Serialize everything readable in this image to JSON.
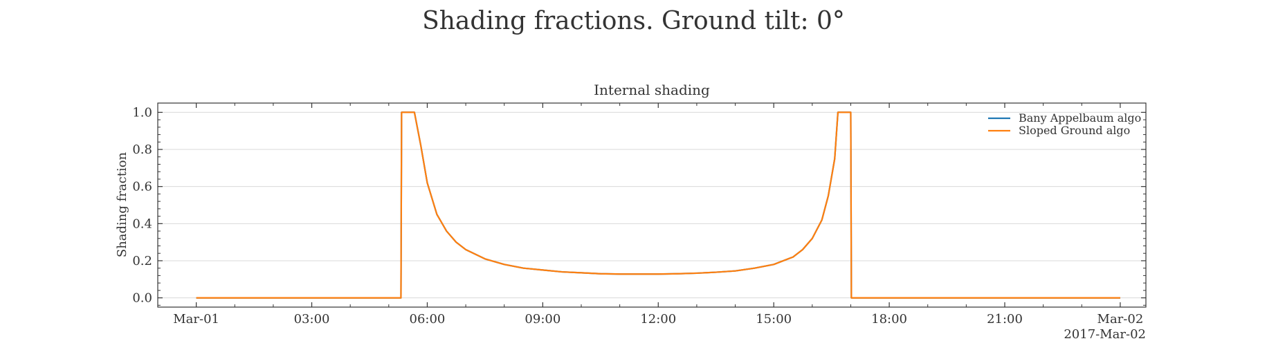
{
  "figure": {
    "suptitle": "Shading fractions. Ground tilt: 0°"
  },
  "chart_data": {
    "type": "line",
    "title": "Internal shading",
    "xlabel": "",
    "ylabel": "Shading fraction",
    "x_offset_label": "2017-Mar-02",
    "xlim": [
      "2017-03-01 -01:00",
      "2017-03-02 +00:40"
    ],
    "ylim": [
      -0.05,
      1.05
    ],
    "x_ticks": [
      {
        "t": "2017-03-01 00:00",
        "label": "Mar-01"
      },
      {
        "t": "2017-03-01 03:00",
        "label": "03:00"
      },
      {
        "t": "2017-03-01 06:00",
        "label": "06:00"
      },
      {
        "t": "2017-03-01 09:00",
        "label": "09:00"
      },
      {
        "t": "2017-03-01 12:00",
        "label": "12:00"
      },
      {
        "t": "2017-03-01 15:00",
        "label": "15:00"
      },
      {
        "t": "2017-03-01 18:00",
        "label": "18:00"
      },
      {
        "t": "2017-03-01 21:00",
        "label": "21:00"
      },
      {
        "t": "2017-03-02 00:00",
        "label": "Mar-02"
      }
    ],
    "y_ticks": [
      {
        "v": 0.0,
        "label": "0.0"
      },
      {
        "v": 0.2,
        "label": "0.2"
      },
      {
        "v": 0.4,
        "label": "0.4"
      },
      {
        "v": 0.6,
        "label": "0.6"
      },
      {
        "v": 0.8,
        "label": "0.8"
      },
      {
        "v": 1.0,
        "label": "1.0"
      }
    ],
    "grid": "horizontal",
    "legend_position": "top-right",
    "series": [
      {
        "name": "Bany Appelbaum algo",
        "color": "#1f77b4",
        "x": [
          "2017-03-01 00:00",
          "2017-03-01 05:19",
          "2017-03-01 05:20",
          "2017-03-01 05:40",
          "2017-03-01 05:50",
          "2017-03-01 06:00",
          "2017-03-01 06:15",
          "2017-03-01 06:30",
          "2017-03-01 06:45",
          "2017-03-01 07:00",
          "2017-03-01 07:30",
          "2017-03-01 08:00",
          "2017-03-01 08:30",
          "2017-03-01 09:00",
          "2017-03-01 09:30",
          "2017-03-01 10:00",
          "2017-03-01 10:30",
          "2017-03-01 11:00",
          "2017-03-01 11:30",
          "2017-03-01 12:00",
          "2017-03-01 12:30",
          "2017-03-01 13:00",
          "2017-03-01 13:30",
          "2017-03-01 14:00",
          "2017-03-01 14:30",
          "2017-03-01 15:00",
          "2017-03-01 15:30",
          "2017-03-01 15:45",
          "2017-03-01 16:00",
          "2017-03-01 16:15",
          "2017-03-01 16:25",
          "2017-03-01 16:35",
          "2017-03-01 16:40",
          "2017-03-01 17:00",
          "2017-03-01 17:01",
          "2017-03-02 00:00"
        ],
        "y": [
          0.0,
          0.0,
          1.0,
          1.0,
          0.82,
          0.62,
          0.45,
          0.36,
          0.3,
          0.26,
          0.21,
          0.18,
          0.16,
          0.15,
          0.14,
          0.135,
          0.13,
          0.128,
          0.128,
          0.128,
          0.13,
          0.133,
          0.138,
          0.145,
          0.16,
          0.18,
          0.22,
          0.26,
          0.32,
          0.42,
          0.55,
          0.75,
          1.0,
          1.0,
          0.0,
          0.0
        ]
      },
      {
        "name": "Sloped Ground algo",
        "color": "#ff7f0e",
        "x": [
          "2017-03-01 00:00",
          "2017-03-01 05:19",
          "2017-03-01 05:20",
          "2017-03-01 05:40",
          "2017-03-01 05:50",
          "2017-03-01 06:00",
          "2017-03-01 06:15",
          "2017-03-01 06:30",
          "2017-03-01 06:45",
          "2017-03-01 07:00",
          "2017-03-01 07:30",
          "2017-03-01 08:00",
          "2017-03-01 08:30",
          "2017-03-01 09:00",
          "2017-03-01 09:30",
          "2017-03-01 10:00",
          "2017-03-01 10:30",
          "2017-03-01 11:00",
          "2017-03-01 11:30",
          "2017-03-01 12:00",
          "2017-03-01 12:30",
          "2017-03-01 13:00",
          "2017-03-01 13:30",
          "2017-03-01 14:00",
          "2017-03-01 14:30",
          "2017-03-01 15:00",
          "2017-03-01 15:30",
          "2017-03-01 15:45",
          "2017-03-01 16:00",
          "2017-03-01 16:15",
          "2017-03-01 16:25",
          "2017-03-01 16:35",
          "2017-03-01 16:40",
          "2017-03-01 17:00",
          "2017-03-01 17:01",
          "2017-03-02 00:00"
        ],
        "y": [
          0.0,
          0.0,
          1.0,
          1.0,
          0.82,
          0.62,
          0.45,
          0.36,
          0.3,
          0.26,
          0.21,
          0.18,
          0.16,
          0.15,
          0.14,
          0.135,
          0.13,
          0.128,
          0.128,
          0.128,
          0.13,
          0.133,
          0.138,
          0.145,
          0.16,
          0.18,
          0.22,
          0.26,
          0.32,
          0.42,
          0.55,
          0.75,
          1.0,
          1.0,
          0.0,
          0.0
        ]
      }
    ]
  }
}
